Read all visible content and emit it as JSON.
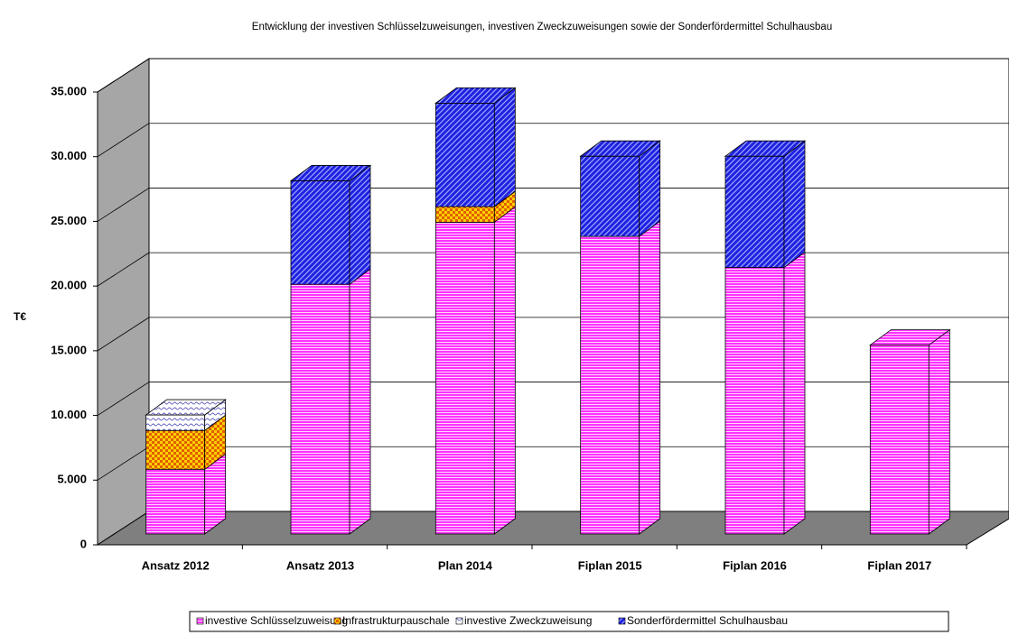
{
  "chart_data": {
    "type": "bar3d_stacked",
    "title": "Entwicklung der investiven Schlüsselzuweisungen, investiven Zweckzuweisungen sowie der Sonderfördermittel Schulhausbau",
    "y_label": "T€",
    "categories": [
      "Ansatz 2012",
      "Ansatz 2013",
      "Plan 2014",
      "Fiplan 2015",
      "Fiplan 2016",
      "Fiplan 2017"
    ],
    "series": [
      {
        "name": "investive Schlüsselzuweisung",
        "color": "#ff33ff",
        "values": [
          5000,
          19300,
          24100,
          23000,
          20600,
          14600
        ]
      },
      {
        "name": "Infrastrukturpauschale",
        "color": "#e06000",
        "values": [
          3000,
          0,
          1200,
          0,
          0,
          0
        ]
      },
      {
        "name": "investive Zweckzuweisung",
        "color": "#c8c8ff",
        "values": [
          1200,
          0,
          0,
          0,
          0,
          0
        ]
      },
      {
        "name": "Sonderfördermittel Schulhausbau",
        "color": "#2020e0",
        "values": [
          0,
          8000,
          8000,
          6200,
          8600,
          0
        ]
      }
    ],
    "ylim": [
      0,
      35000
    ],
    "yticks": [
      0,
      {
        "value": 5000,
        "label": "5.000"
      },
      {
        "value": 10000,
        "label": "10.000"
      },
      {
        "value": 15000,
        "label": "15.000"
      },
      {
        "value": 20000,
        "label": "20.000"
      },
      {
        "value": 25000,
        "label": "25.000"
      },
      {
        "value": 30000,
        "label": "30.000"
      },
      {
        "value": 35000,
        "label": "35.000"
      }
    ],
    "grid": true,
    "legend": "bottom"
  }
}
